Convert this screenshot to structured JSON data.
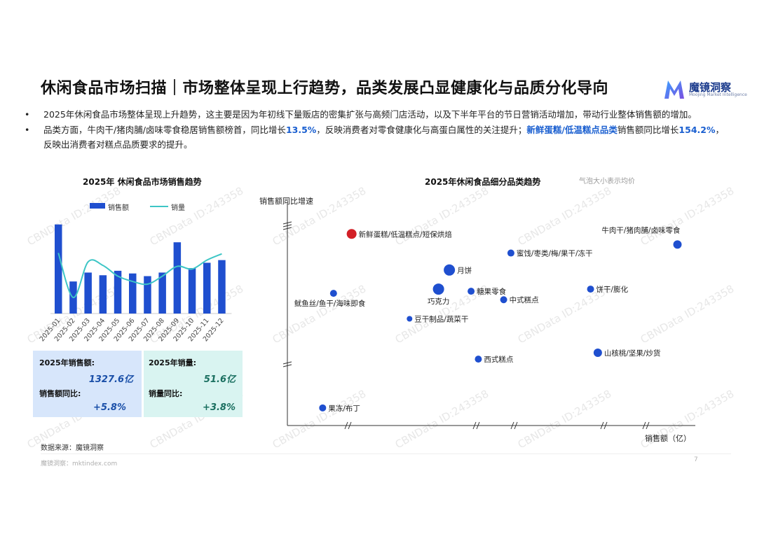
{
  "header": {
    "title": "休闲食品市场扫描｜市场整体呈现上行趋势，品类发展凸显健康化与品质分化导向",
    "logo_name": "魔镜洞察",
    "logo_sub": "Moojing Market Intelligence"
  },
  "bullets": [
    {
      "dot": "•",
      "text": "2025年休闲食品市场整体呈现上升趋势，这主要是因为年初线下量贩店的密集扩张与高频门店活动，以及下半年平台的节日营销活动增加，带动行业整体销售额的增加。"
    },
    {
      "dot": "•",
      "p1": "品类方面，牛肉干/猪肉脯/卤味零食稳居销售额榜首，同比增长",
      "h1": "13.5%",
      "p2": "，反映消费者对零食健康化与高蛋白属性的关注提升；",
      "h2": "新鲜蛋糕/低温糕点品类",
      "p3": "销售额同比增长",
      "h3": "154.2%",
      "p4": "，反映出消费者对糕点品质要求的提升。"
    }
  ],
  "left_chart": {
    "title": "2025年 休闲食品市场销售趋势",
    "legend_bar": "销售额",
    "legend_line": "销量"
  },
  "kpis": {
    "sales_label": "2025年销售额:",
    "sales_value": "1327.6亿",
    "sales_yoy_label": "销售额同比:",
    "sales_yoy_value": "+5.8%",
    "volume_label": "2025年销量:",
    "volume_value": "51.6亿",
    "volume_yoy_label": "销量同比:",
    "volume_yoy_value": "+3.8%"
  },
  "right_chart": {
    "title": "2025年休闲食品细分品类趋势",
    "note": "气泡大小表示均价",
    "ylabel": "销售额同比增速",
    "xlabel": "销售额（亿）"
  },
  "footer": {
    "source": "数据来源：魔镜洞察",
    "site": "魔镜洞察：mktindex.com",
    "page": "7"
  },
  "watermark": "CBNData ID:243358",
  "colors": {
    "bar": "#1f4fcf",
    "line": "#3ec6c6",
    "bubble": "#1f4fcf",
    "bubble_highlight": "#d21f26",
    "highlight_text": "#1a5fd0"
  },
  "chart_data": [
    {
      "type": "bar",
      "title": "2025年 休闲食品市场销售趋势",
      "categories": [
        "2025-01",
        "2025-02",
        "2025-03",
        "2025-04",
        "2025-05",
        "2025-06",
        "2025-07",
        "2025-08",
        "2025-09",
        "2025-10",
        "2025-11",
        "2025-12"
      ],
      "series": [
        {
          "name": "销售额",
          "type": "bar",
          "values": [
            100,
            36,
            46,
            43,
            48,
            45,
            42,
            46,
            80,
            51,
            57,
            60
          ]
        },
        {
          "name": "销量",
          "type": "line",
          "values": [
            68,
            18,
            58,
            54,
            42,
            36,
            33,
            42,
            53,
            50,
            60,
            67
          ]
        }
      ],
      "ylim": [
        0,
        110
      ],
      "legend": "top"
    },
    {
      "type": "scatter",
      "title": "2025年休闲食品细分品类趋势",
      "xlabel": "销售额（亿）",
      "ylabel": "销售额同比增速",
      "note": "气泡大小表示均价",
      "points": [
        {
          "label": "新鲜蛋糕/低温糕点/短保烘焙",
          "x": 1.0,
          "y": 9.7,
          "size": 7,
          "highlight": true
        },
        {
          "label": "牛肉干/猪肉脯/卤味零食",
          "x": 10.0,
          "y": 9.2,
          "size": 6
        },
        {
          "label": "蜜饯/枣类/梅/果干/冻干",
          "x": 5.4,
          "y": 8.8,
          "size": 5
        },
        {
          "label": "月饼",
          "x": 3.7,
          "y": 8.0,
          "size": 8
        },
        {
          "label": "巧克力",
          "x": 3.4,
          "y": 7.1,
          "size": 8
        },
        {
          "label": "糖果零食",
          "x": 4.3,
          "y": 7.0,
          "size": 5
        },
        {
          "label": "饼干/膨化",
          "x": 7.6,
          "y": 7.1,
          "size": 5
        },
        {
          "label": "中式糕点",
          "x": 5.2,
          "y": 6.6,
          "size": 5
        },
        {
          "label": "鱿鱼丝/鱼干/海味即食",
          "x": 0.5,
          "y": 6.9,
          "size": 5
        },
        {
          "label": "豆干制品/蔬菜干",
          "x": 2.6,
          "y": 5.7,
          "size": 4
        },
        {
          "label": "山核桃/坚果/炒货",
          "x": 7.8,
          "y": 4.1,
          "size": 6
        },
        {
          "label": "西式糕点",
          "x": 4.5,
          "y": 3.8,
          "size": 5
        },
        {
          "label": "果冻/布丁",
          "x": 0.2,
          "y": 1.5,
          "size": 5
        }
      ],
      "xlim": [
        0,
        10.3
      ],
      "ylim": [
        1.0,
        10.5
      ]
    }
  ]
}
